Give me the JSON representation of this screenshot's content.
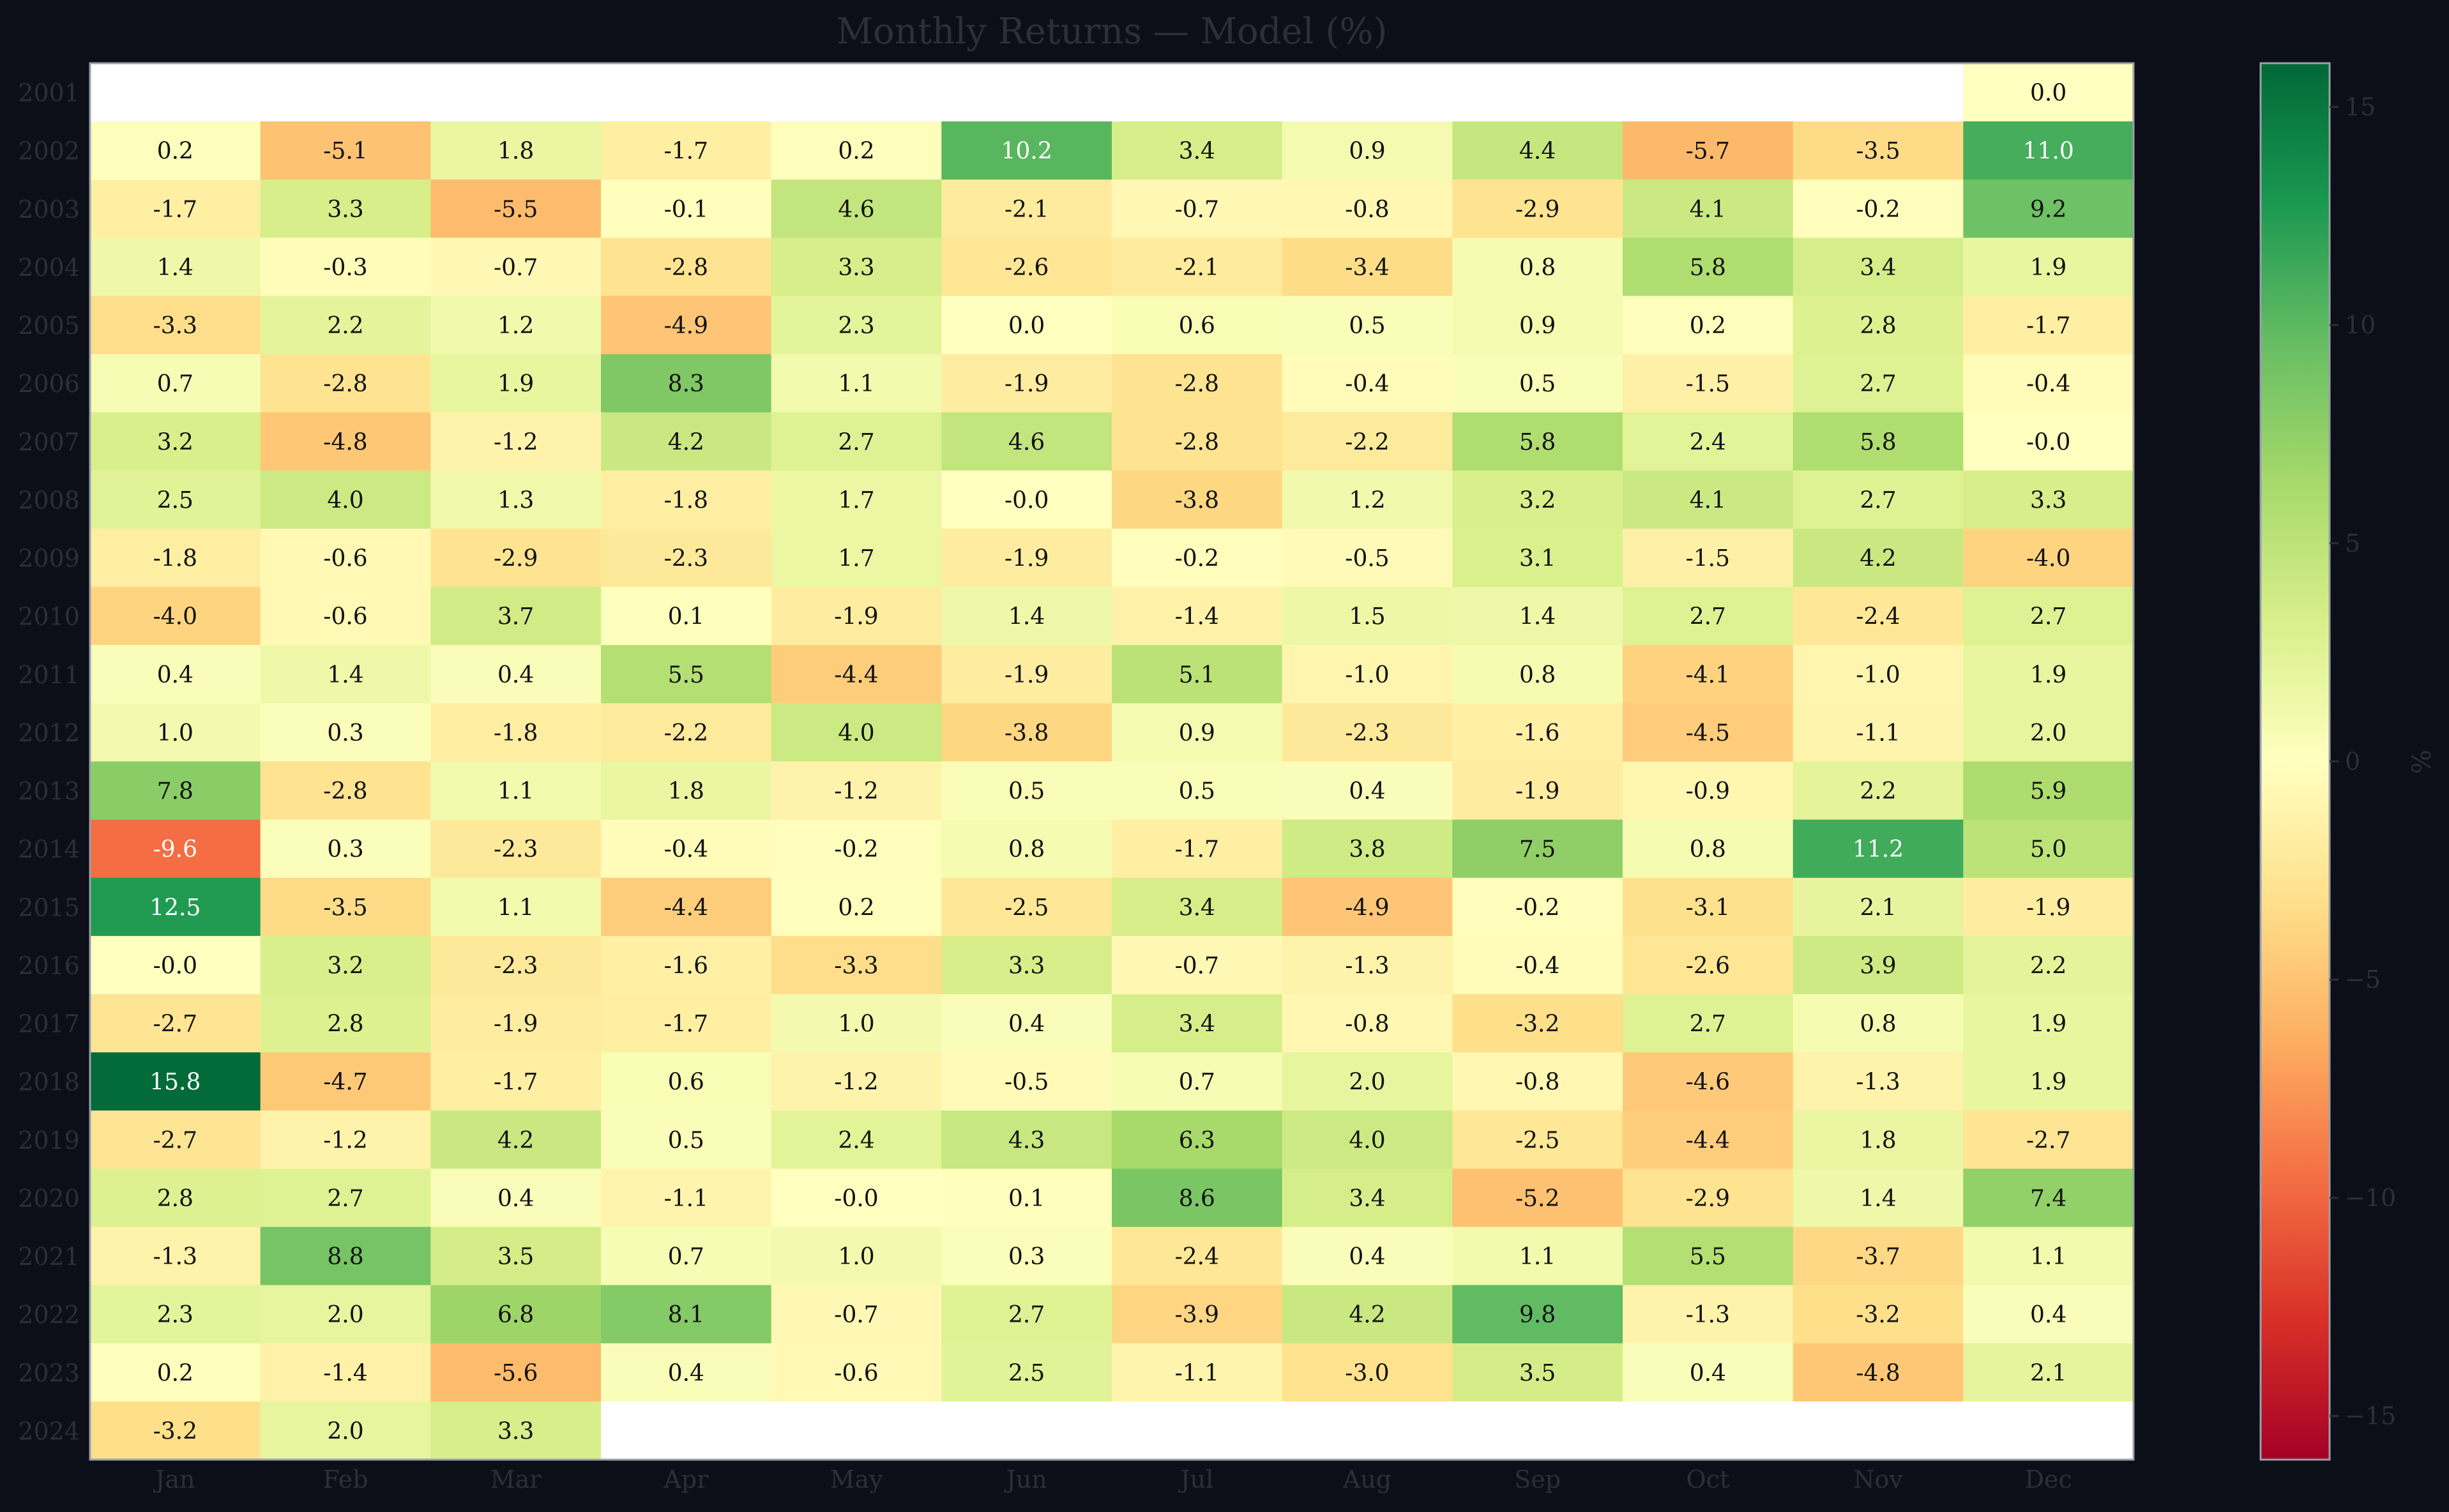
{
  "chart_data": {
    "type": "heatmap",
    "title": "Monthly Returns — Model (%)",
    "colorbar_label": "%",
    "months": [
      "Jan",
      "Feb",
      "Mar",
      "Apr",
      "May",
      "Jun",
      "Jul",
      "Aug",
      "Sep",
      "Oct",
      "Nov",
      "Dec"
    ],
    "years": [
      "2001",
      "2002",
      "2003",
      "2004",
      "2005",
      "2006",
      "2007",
      "2008",
      "2009",
      "2010",
      "2011",
      "2012",
      "2013",
      "2014",
      "2015",
      "2016",
      "2017",
      "2018",
      "2019",
      "2020",
      "2021",
      "2022",
      "2023",
      "2024"
    ],
    "values": [
      [
        null,
        null,
        null,
        null,
        null,
        null,
        null,
        null,
        null,
        null,
        null,
        0.0
      ],
      [
        0.2,
        -5.1,
        1.8,
        -1.7,
        0.2,
        10.2,
        3.4,
        0.9,
        4.4,
        -5.7,
        -3.5,
        11.0
      ],
      [
        -1.7,
        3.3,
        -5.5,
        -0.1,
        4.6,
        -2.1,
        -0.7,
        -0.8,
        -2.9,
        4.1,
        -0.2,
        9.2
      ],
      [
        1.4,
        -0.3,
        -0.7,
        -2.8,
        3.3,
        -2.6,
        -2.1,
        -3.4,
        0.8,
        5.8,
        3.4,
        1.9
      ],
      [
        -3.3,
        2.2,
        1.2,
        -4.9,
        2.3,
        0.0,
        0.6,
        0.5,
        0.9,
        0.2,
        2.8,
        -1.7
      ],
      [
        0.7,
        -2.8,
        1.9,
        8.3,
        1.1,
        -1.9,
        -2.8,
        -0.4,
        0.5,
        -1.5,
        2.7,
        -0.4
      ],
      [
        3.2,
        -4.8,
        -1.2,
        4.2,
        2.7,
        4.6,
        -2.8,
        -2.2,
        5.8,
        2.4,
        5.8,
        -0.0
      ],
      [
        2.5,
        4.0,
        1.3,
        -1.8,
        1.7,
        -0.0,
        -3.8,
        1.2,
        3.2,
        4.1,
        2.7,
        3.3
      ],
      [
        -1.8,
        -0.6,
        -2.9,
        -2.3,
        1.7,
        -1.9,
        -0.2,
        -0.5,
        3.1,
        -1.5,
        4.2,
        -4.0
      ],
      [
        -4.0,
        -0.6,
        3.7,
        0.1,
        -1.9,
        1.4,
        -1.4,
        1.5,
        1.4,
        2.7,
        -2.4,
        2.7
      ],
      [
        0.4,
        1.4,
        0.4,
        5.5,
        -4.4,
        -1.9,
        5.1,
        -1.0,
        0.8,
        -4.1,
        -1.0,
        1.9
      ],
      [
        1.0,
        0.3,
        -1.8,
        -2.2,
        4.0,
        -3.8,
        0.9,
        -2.3,
        -1.6,
        -4.5,
        -1.1,
        2.0
      ],
      [
        7.8,
        -2.8,
        1.1,
        1.8,
        -1.2,
        0.5,
        0.5,
        0.4,
        -1.9,
        -0.9,
        2.2,
        5.9
      ],
      [
        -9.6,
        0.3,
        -2.3,
        -0.4,
        -0.2,
        0.8,
        -1.7,
        3.8,
        7.5,
        0.8,
        11.2,
        5.0
      ],
      [
        12.5,
        -3.5,
        1.1,
        -4.4,
        0.2,
        -2.5,
        3.4,
        -4.9,
        -0.2,
        -3.1,
        2.1,
        -1.9
      ],
      [
        -0.0,
        3.2,
        -2.3,
        -1.6,
        -3.3,
        3.3,
        -0.7,
        -1.3,
        -0.4,
        -2.6,
        3.9,
        2.2
      ],
      [
        -2.7,
        2.8,
        -1.9,
        -1.7,
        1.0,
        0.4,
        3.4,
        -0.8,
        -3.2,
        2.7,
        0.8,
        1.9
      ],
      [
        15.8,
        -4.7,
        -1.7,
        0.6,
        -1.2,
        -0.5,
        0.7,
        2.0,
        -0.8,
        -4.6,
        -1.3,
        1.9
      ],
      [
        -2.7,
        -1.2,
        4.2,
        0.5,
        2.4,
        4.3,
        6.3,
        4.0,
        -2.5,
        -4.4,
        1.8,
        -2.7
      ],
      [
        2.8,
        2.7,
        0.4,
        -1.1,
        -0.0,
        0.1,
        8.6,
        3.4,
        -5.2,
        -2.9,
        1.4,
        7.4
      ],
      [
        -1.3,
        8.8,
        3.5,
        0.7,
        1.0,
        0.3,
        -2.4,
        0.4,
        1.1,
        5.5,
        -3.7,
        1.1
      ],
      [
        2.3,
        2.0,
        6.8,
        8.1,
        -0.7,
        2.7,
        -3.9,
        4.2,
        9.8,
        -1.3,
        -3.2,
        0.4
      ],
      [
        0.2,
        -1.4,
        -5.6,
        0.4,
        -0.6,
        2.5,
        -1.1,
        -3.0,
        3.5,
        0.4,
        -4.8,
        2.1
      ],
      [
        -3.2,
        2.0,
        3.3,
        null,
        null,
        null,
        null,
        null,
        null,
        null,
        null,
        null
      ]
    ],
    "value_range": [
      -16,
      16
    ],
    "colorbar_ticks": [
      15,
      10,
      5,
      0,
      -5,
      -10,
      -15
    ],
    "colorbar_tick_labels": [
      "15",
      "10",
      "5",
      "0",
      "−5",
      "−10",
      "−15"
    ],
    "colormap": "RdYlGn",
    "colors": {
      "background": "#0c0f17",
      "axis_text": "#2b2f3a",
      "empty_cell": "#ffffff"
    }
  }
}
